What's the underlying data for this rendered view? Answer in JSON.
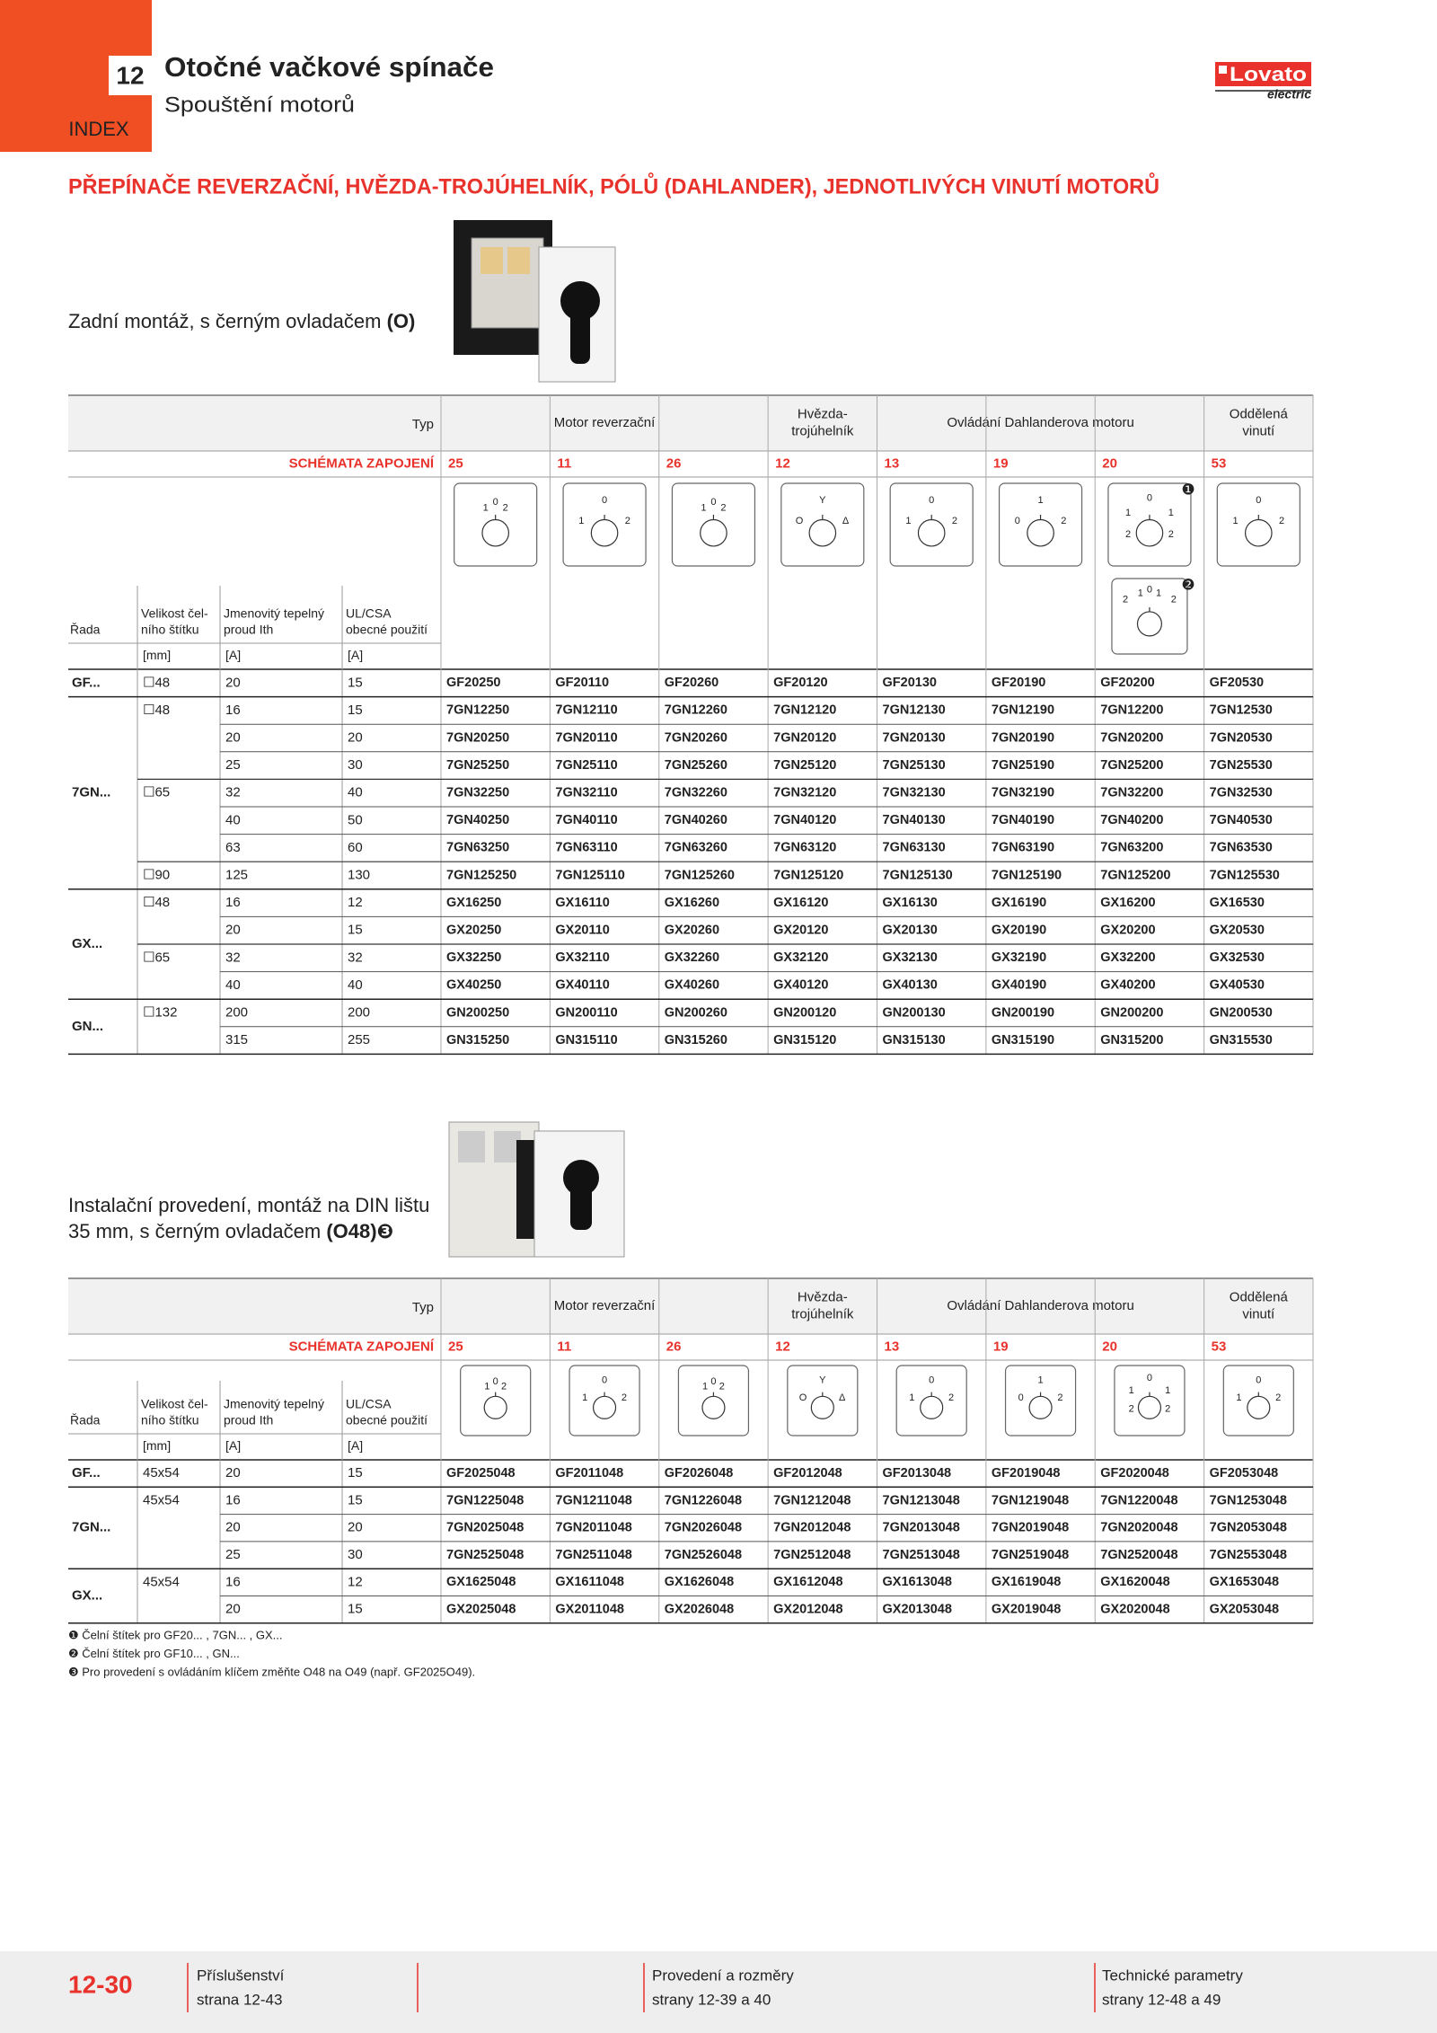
{
  "header": {
    "chapter": "12",
    "index": "INDEX",
    "title": "Otočné vačkové spínače",
    "subtitle": "Spouštění motorů",
    "brand": "Lovato",
    "brand_sub": "electric"
  },
  "section_title": "PŘEPÍNAČE REVERZAČNÍ, HVĚZDA-TROJÚHELNÍK, PÓLŮ (DAHLANDER), JEDNOTLIVÝCH VINUTÍ MOTORŮ",
  "blocks": [
    {
      "caption": [
        "Zadní montáž, s černým ovladačem "
      ],
      "caption_bold": "(O)",
      "table": {
        "type_label": "Typ",
        "groups": [
          [
            "Motor reverzační"
          ],
          [
            "Hvězda-",
            "trojúhelník"
          ],
          [
            "Ovládání Dahlanderova motoru"
          ],
          [
            "Oddělená",
            "vinutí"
          ]
        ],
        "schemes_label": "SCHÉMATA ZAPOJENÍ",
        "schemes": [
          "25",
          "11",
          "26",
          "12",
          "13",
          "19",
          "20",
          "53"
        ],
        "diagrams": [
          [
            "1",
            "0",
            "2"
          ],
          [
            "0",
            "1",
            "2"
          ],
          [
            "1",
            "0",
            "2"
          ],
          [
            "Y",
            "O",
            "Δ"
          ],
          [
            "0",
            "1",
            "2"
          ],
          [
            "1",
            "0",
            "2"
          ],
          [
            "0",
            "1",
            "1",
            "2",
            "2"
          ],
          [
            "0",
            "1",
            "2"
          ]
        ],
        "diagram_note": "❶",
        "extra_diagram": {
          "note": "❷",
          "labels": [
            "1",
            "0",
            "1",
            "2",
            "2"
          ]
        },
        "columns": [
          [
            "Řada"
          ],
          [
            "Velikost čel-",
            "ního štítku"
          ],
          [
            "Jmenovitý tepelný",
            "proud Ith"
          ],
          [
            "UL/CSA",
            "obecné použití"
          ]
        ],
        "units": [
          "[mm]",
          "[A]",
          "[A]"
        ],
        "series": [
          {
            "name": "GF...",
            "sizes": [
              {
                "size": "☐48",
                "rows": [
                  {
                    "ith": "20",
                    "ul": "15",
                    "codes": [
                      "GF20250",
                      "GF20110",
                      "GF20260",
                      "GF20120",
                      "GF20130",
                      "GF20190",
                      "GF20200",
                      "GF20530"
                    ]
                  }
                ]
              }
            ]
          },
          {
            "name": "7GN...",
            "sizes": [
              {
                "size": "☐48",
                "rows": [
                  {
                    "ith": "16",
                    "ul": "15",
                    "codes": [
                      "7GN12250",
                      "7GN12110",
                      "7GN12260",
                      "7GN12120",
                      "7GN12130",
                      "7GN12190",
                      "7GN12200",
                      "7GN12530"
                    ]
                  },
                  {
                    "ith": "20",
                    "ul": "20",
                    "codes": [
                      "7GN20250",
                      "7GN20110",
                      "7GN20260",
                      "7GN20120",
                      "7GN20130",
                      "7GN20190",
                      "7GN20200",
                      "7GN20530"
                    ]
                  },
                  {
                    "ith": "25",
                    "ul": "30",
                    "codes": [
                      "7GN25250",
                      "7GN25110",
                      "7GN25260",
                      "7GN25120",
                      "7GN25130",
                      "7GN25190",
                      "7GN25200",
                      "7GN25530"
                    ]
                  }
                ]
              },
              {
                "size": "☐65",
                "rows": [
                  {
                    "ith": "32",
                    "ul": "40",
                    "codes": [
                      "7GN32250",
                      "7GN32110",
                      "7GN32260",
                      "7GN32120",
                      "7GN32130",
                      "7GN32190",
                      "7GN32200",
                      "7GN32530"
                    ]
                  },
                  {
                    "ith": "40",
                    "ul": "50",
                    "codes": [
                      "7GN40250",
                      "7GN40110",
                      "7GN40260",
                      "7GN40120",
                      "7GN40130",
                      "7GN40190",
                      "7GN40200",
                      "7GN40530"
                    ]
                  },
                  {
                    "ith": "63",
                    "ul": "60",
                    "codes": [
                      "7GN63250",
                      "7GN63110",
                      "7GN63260",
                      "7GN63120",
                      "7GN63130",
                      "7GN63190",
                      "7GN63200",
                      "7GN63530"
                    ]
                  }
                ]
              },
              {
                "size": "☐90",
                "rows": [
                  {
                    "ith": "125",
                    "ul": "130",
                    "codes": [
                      "7GN125250",
                      "7GN125110",
                      "7GN125260",
                      "7GN125120",
                      "7GN125130",
                      "7GN125190",
                      "7GN125200",
                      "7GN125530"
                    ]
                  }
                ]
              }
            ]
          },
          {
            "name": "GX...",
            "sizes": [
              {
                "size": "☐48",
                "rows": [
                  {
                    "ith": "16",
                    "ul": "12",
                    "codes": [
                      "GX16250",
                      "GX16110",
                      "GX16260",
                      "GX16120",
                      "GX16130",
                      "GX16190",
                      "GX16200",
                      "GX16530"
                    ]
                  },
                  {
                    "ith": "20",
                    "ul": "15",
                    "codes": [
                      "GX20250",
                      "GX20110",
                      "GX20260",
                      "GX20120",
                      "GX20130",
                      "GX20190",
                      "GX20200",
                      "GX20530"
                    ]
                  }
                ]
              },
              {
                "size": "☐65",
                "rows": [
                  {
                    "ith": "32",
                    "ul": "32",
                    "codes": [
                      "GX32250",
                      "GX32110",
                      "GX32260",
                      "GX32120",
                      "GX32130",
                      "GX32190",
                      "GX32200",
                      "GX32530"
                    ]
                  },
                  {
                    "ith": "40",
                    "ul": "40",
                    "codes": [
                      "GX40250",
                      "GX40110",
                      "GX40260",
                      "GX40120",
                      "GX40130",
                      "GX40190",
                      "GX40200",
                      "GX40530"
                    ]
                  }
                ]
              }
            ]
          },
          {
            "name": "GN...",
            "sizes": [
              {
                "size": "☐132",
                "rows": [
                  {
                    "ith": "200",
                    "ul": "200",
                    "codes": [
                      "GN200250",
                      "GN200110",
                      "GN200260",
                      "GN200120",
                      "GN200130",
                      "GN200190",
                      "GN200200",
                      "GN200530"
                    ]
                  },
                  {
                    "ith": "315",
                    "ul": "255",
                    "codes": [
                      "GN315250",
                      "GN315110",
                      "GN315260",
                      "GN315120",
                      "GN315130",
                      "GN315190",
                      "GN315200",
                      "GN315530"
                    ]
                  }
                ]
              }
            ]
          }
        ]
      }
    },
    {
      "caption": [
        "Instalační provedení, montáž na DIN lištu",
        "35 mm, s černým ovladačem "
      ],
      "caption_bold": "(O48)❸",
      "table": {
        "type_label": "Typ",
        "groups": [
          [
            "Motor reverzační"
          ],
          [
            "Hvězda-",
            "trojúhelník"
          ],
          [
            "Ovládání Dahlanderova motoru"
          ],
          [
            "Oddělená",
            "vinutí"
          ]
        ],
        "schemes_label": "SCHÉMATA ZAPOJENÍ",
        "schemes": [
          "25",
          "11",
          "26",
          "12",
          "13",
          "19",
          "20",
          "53"
        ],
        "diagrams": [
          [
            "1",
            "0",
            "2"
          ],
          [
            "0",
            "1",
            "2"
          ],
          [
            "1",
            "0",
            "2"
          ],
          [
            "Y",
            "O",
            "Δ"
          ],
          [
            "0",
            "1",
            "2"
          ],
          [
            "1",
            "0",
            "2"
          ],
          [
            "0",
            "1",
            "1",
            "2",
            "2"
          ],
          [
            "0",
            "1",
            "2"
          ]
        ],
        "columns": [
          [
            "Řada"
          ],
          [
            "Velikost čel-",
            "ního štítku"
          ],
          [
            "Jmenovitý tepelný",
            "proud Ith"
          ],
          [
            "UL/CSA",
            "obecné použití"
          ]
        ],
        "units": [
          "[mm]",
          "[A]",
          "[A]"
        ],
        "series": [
          {
            "name": "GF...",
            "sizes": [
              {
                "size": "45x54",
                "rows": [
                  {
                    "ith": "20",
                    "ul": "15",
                    "codes": [
                      "GF2025048",
                      "GF2011048",
                      "GF2026048",
                      "GF2012048",
                      "GF2013048",
                      "GF2019048",
                      "GF2020048",
                      "GF2053048"
                    ]
                  }
                ]
              }
            ]
          },
          {
            "name": "7GN...",
            "sizes": [
              {
                "size": "45x54",
                "rows": [
                  {
                    "ith": "16",
                    "ul": "15",
                    "codes": [
                      "7GN1225048",
                      "7GN1211048",
                      "7GN1226048",
                      "7GN1212048",
                      "7GN1213048",
                      "7GN1219048",
                      "7GN1220048",
                      "7GN1253048"
                    ]
                  },
                  {
                    "ith": "20",
                    "ul": "20",
                    "codes": [
                      "7GN2025048",
                      "7GN2011048",
                      "7GN2026048",
                      "7GN2012048",
                      "7GN2013048",
                      "7GN2019048",
                      "7GN2020048",
                      "7GN2053048"
                    ]
                  },
                  {
                    "ith": "25",
                    "ul": "30",
                    "codes": [
                      "7GN2525048",
                      "7GN2511048",
                      "7GN2526048",
                      "7GN2512048",
                      "7GN2513048",
                      "7GN2519048",
                      "7GN2520048",
                      "7GN2553048"
                    ]
                  }
                ]
              }
            ]
          },
          {
            "name": "GX...",
            "sizes": [
              {
                "size": "45x54",
                "rows": [
                  {
                    "ith": "16",
                    "ul": "12",
                    "codes": [
                      "GX1625048",
                      "GX1611048",
                      "GX1626048",
                      "GX1612048",
                      "GX1613048",
                      "GX1619048",
                      "GX1620048",
                      "GX1653048"
                    ]
                  },
                  {
                    "ith": "20",
                    "ul": "15",
                    "codes": [
                      "GX2025048",
                      "GX2011048",
                      "GX2026048",
                      "GX2012048",
                      "GX2013048",
                      "GX2019048",
                      "GX2020048",
                      "GX2053048"
                    ]
                  }
                ]
              }
            ]
          }
        ]
      }
    }
  ],
  "footnotes": [
    "❶ Čelní štítek pro GF20... , 7GN... , GX...",
    "❷ Čelní štítek pro GF10... , GN...",
    "❸ Pro provedení s ovládáním klíčem změňte O48 na O49 (např. GF2025O49)."
  ],
  "footer": {
    "page": "12-30",
    "links": [
      {
        "title": "Příslušenství",
        "pages": "strana 12-43"
      },
      {
        "title": "Provedení a rozměry",
        "pages": "strany 12-39 a 40"
      },
      {
        "title": "Technické parametry",
        "pages": "strany 12-48 a 49"
      }
    ]
  }
}
